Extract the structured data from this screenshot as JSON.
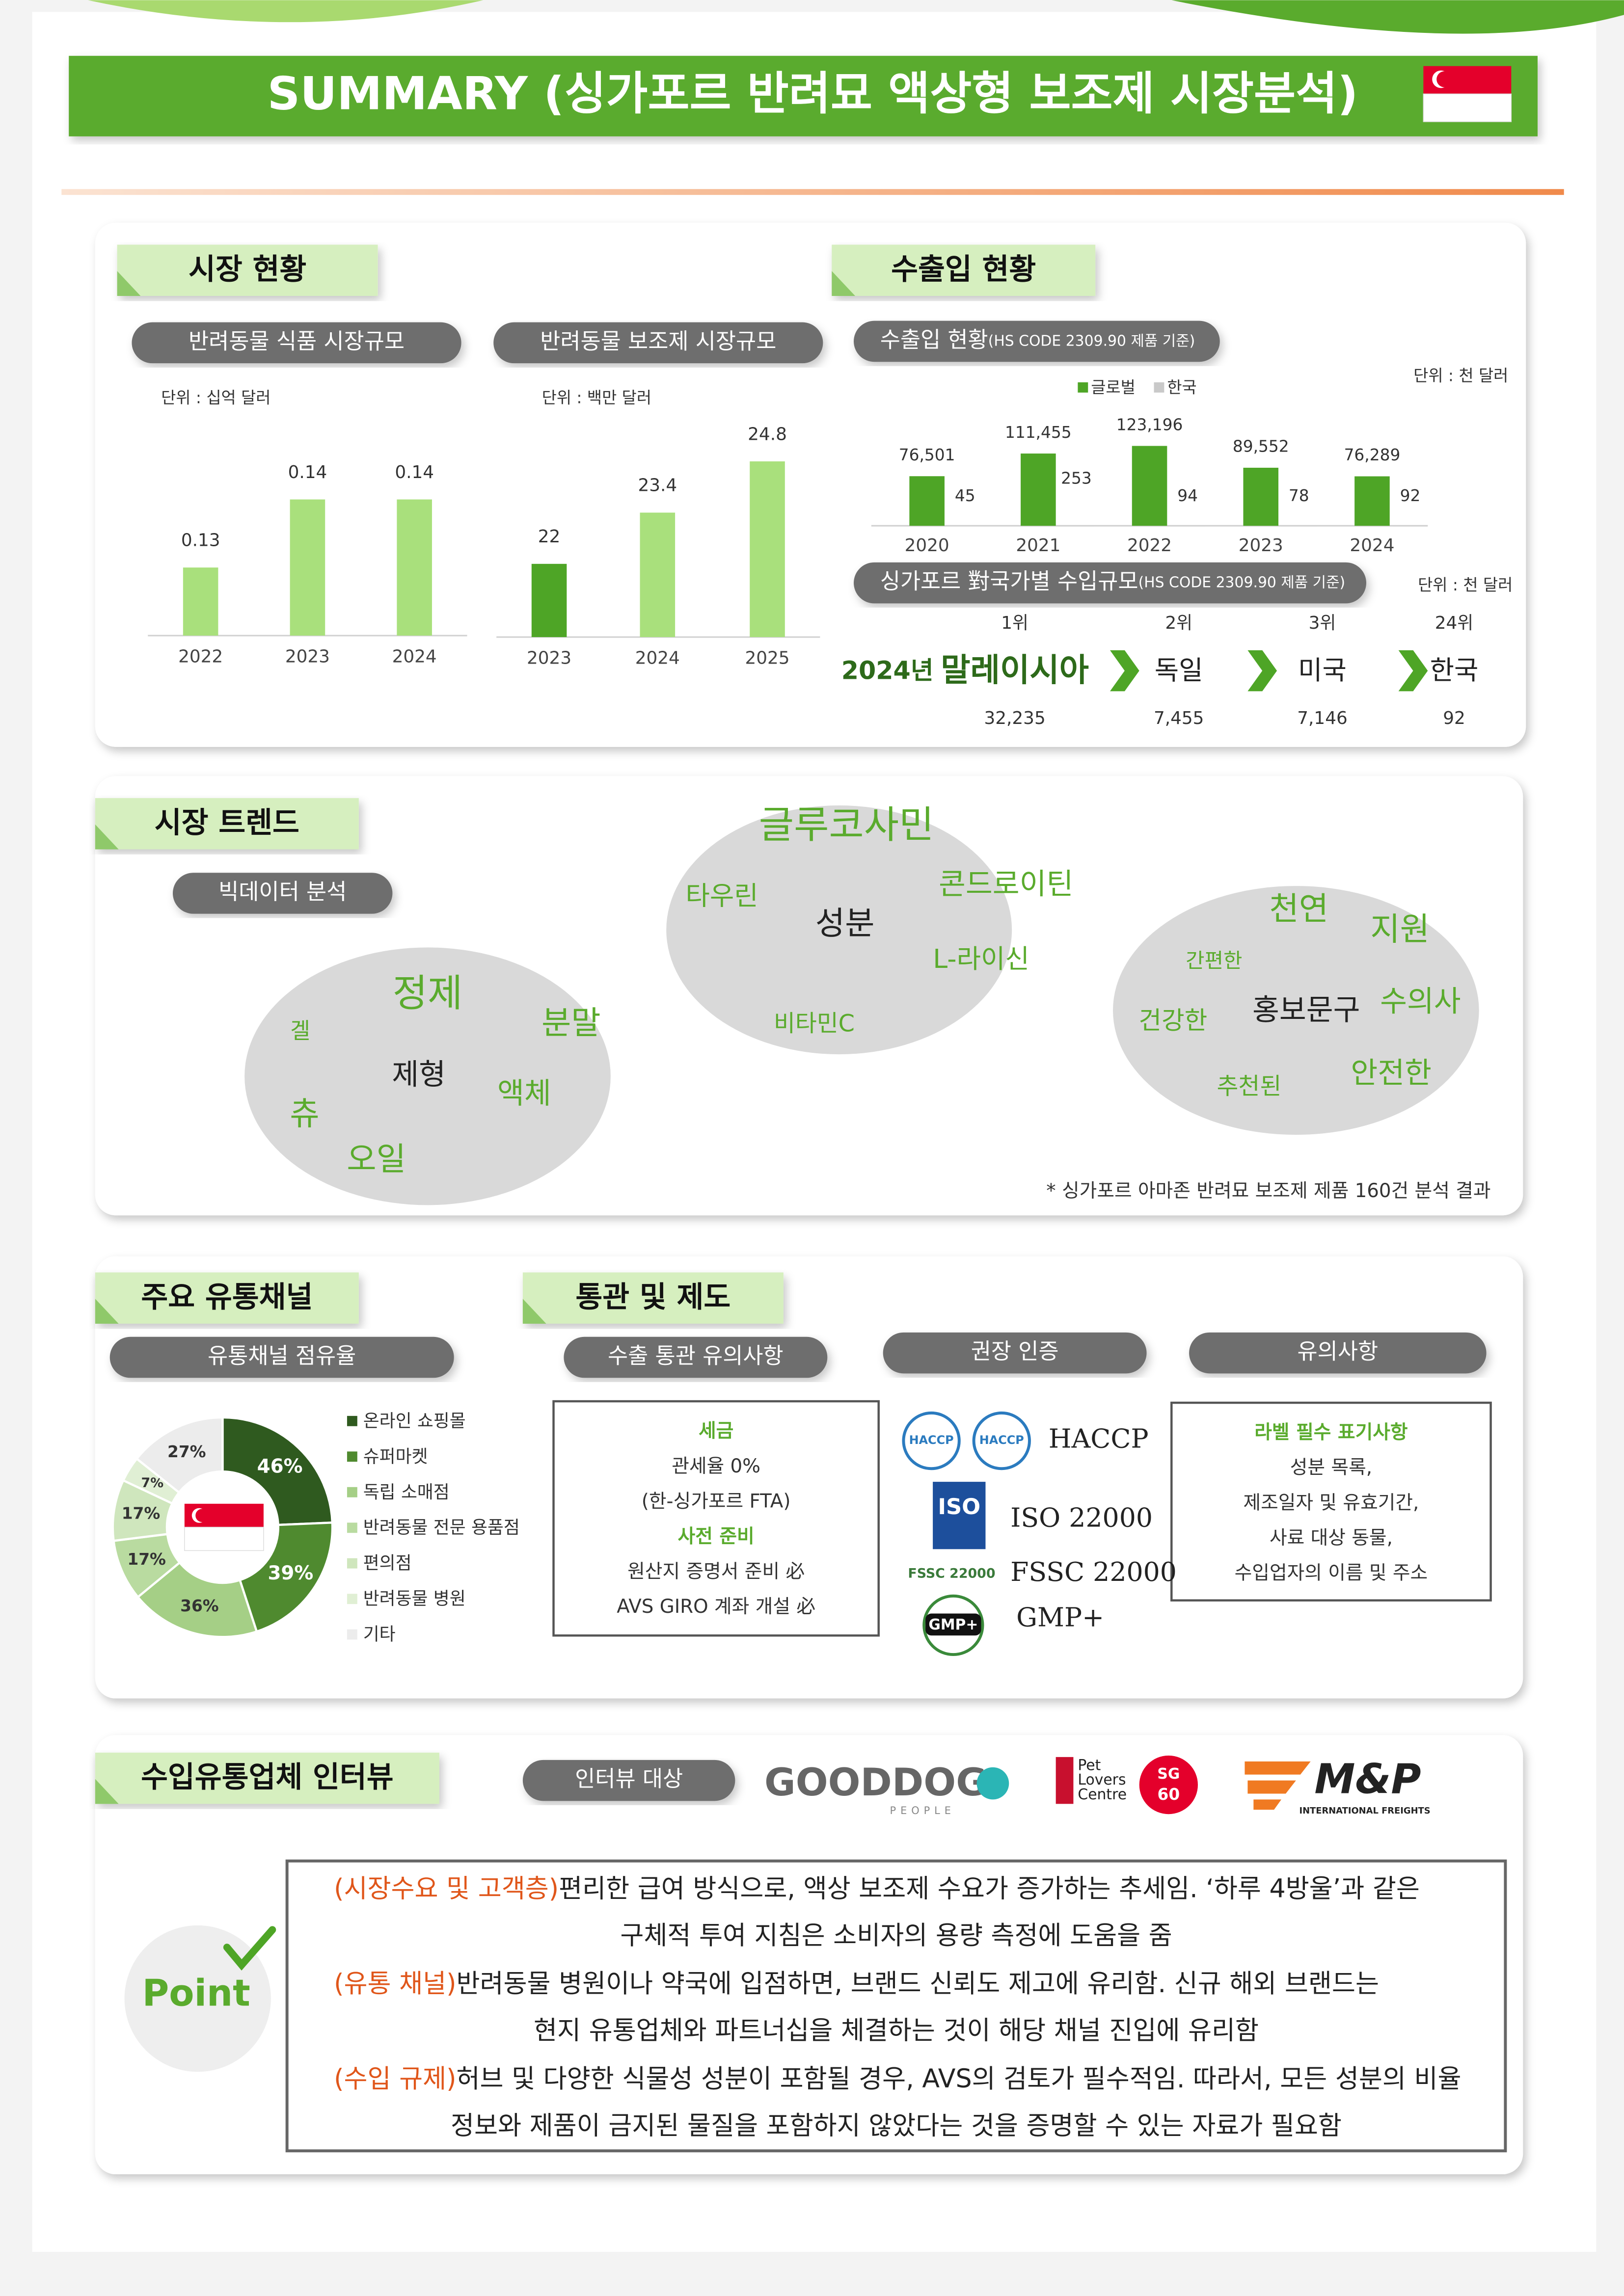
{
  "header": {
    "title": "SUMMARY (싱가포르 반려묘 액상형 보조제 시장분석)"
  },
  "market": {
    "title": "시장 현황",
    "food": {
      "type": "bar",
      "label": "반려동물 식품 시장규모",
      "unit": "단위 : 십억 달러",
      "categories": [
        "2022",
        "2023",
        "2024"
      ],
      "values": [
        0.13,
        0.14,
        0.14
      ],
      "colors": [
        "#a9e07c",
        "#a9e07c",
        "#a9e07c"
      ],
      "ylim": [
        0.12,
        0.16
      ]
    },
    "supplement": {
      "type": "bar",
      "label": "반려동물 보조제 시장규모",
      "unit": "단위 : 백만 달러",
      "categories": [
        "2023",
        "2024",
        "2025"
      ],
      "values": [
        22,
        23.4,
        24.8
      ],
      "colors": [
        "#4ea526",
        "#a9e07c",
        "#a9e07c"
      ],
      "ylim": [
        20,
        26
      ]
    }
  },
  "trade": {
    "title": "수출입 현황",
    "label": "수출입 현황",
    "label_note": "(HS CODE 2309.90 제품 기준)",
    "unit": "단위 : 천 달러",
    "chart": {
      "type": "bar",
      "categories": [
        "2020",
        "2021",
        "2022",
        "2023",
        "2024"
      ],
      "ylim": [
        0,
        140000
      ],
      "series": [
        {
          "name": "글로벌",
          "color": "#4ea526",
          "values": [
            76501,
            111455,
            123196,
            89552,
            76289
          ],
          "value_labels": [
            "76,501",
            "111,455",
            "123,196",
            "89,552",
            "76,289"
          ]
        },
        {
          "name": "한국",
          "color": "#c9c9c9",
          "values": [
            45,
            253,
            94,
            78,
            92
          ]
        }
      ]
    }
  },
  "import_rank": {
    "label": "싱가포르 對국가별 수입규모",
    "label_note": "(HS CODE 2309.90 제품 기준)",
    "unit": "단위 : 천 달러",
    "year": "2024년",
    "items": [
      {
        "rank": "1위",
        "country": "말레이시아",
        "value": "32,235"
      },
      {
        "rank": "2위",
        "country": "독일",
        "value": "7,455"
      },
      {
        "rank": "3위",
        "country": "미국",
        "value": "7,146"
      },
      {
        "rank": "24위",
        "country": "한국",
        "value": "92"
      }
    ]
  },
  "trends": {
    "title": "시장 트렌드",
    "label": "빅데이터 분석",
    "clouds": [
      {
        "words": [
          "정제",
          "겔",
          "분말",
          "제형",
          "츄",
          "액체",
          "오일"
        ]
      },
      {
        "words": [
          "글루코사민",
          "타우린",
          "콘드로이틴",
          "성분",
          "L-라이신",
          "비타민C"
        ]
      },
      {
        "words": [
          "천연",
          "간편한",
          "지원",
          "건강한",
          "홍보문구",
          "수의사",
          "추천된",
          "안전한"
        ]
      }
    ],
    "note": "* 싱가포르 아마존 반려묘 보조제 제품 160건 분석 결과"
  },
  "channels": {
    "title": "주요 유통채널",
    "label": "유통채널 점유율",
    "chart": {
      "type": "pie",
      "categories": [
        "온라인 쇼핑몰",
        "슈퍼마켓",
        "독립 소매점",
        "반려동물 전문 용품점",
        "편의점",
        "반려동물 병원",
        "기타"
      ],
      "values": [
        46,
        39,
        36,
        17,
        17,
        7,
        27
      ],
      "value_labels": [
        "46%",
        "39%",
        "36%",
        "17%",
        "17%",
        "7%",
        "27%"
      ],
      "colors": [
        "#2f5a1f",
        "#4f8a2f",
        "#a5cf86",
        "#b9dba0",
        "#cfe6bd",
        "#e0efd4",
        "#ececec"
      ]
    }
  },
  "customs": {
    "title": "통관 및 제도",
    "export": {
      "label": "수출 통관 유의사항",
      "lines": [
        {
          "text": "세금",
          "kind": "heading"
        },
        {
          "text": "관세율 0%"
        },
        {
          "text": "(한-싱가포르 FTA)"
        },
        {
          "text": "사전 준비",
          "kind": "heading"
        },
        {
          "text": "원산지 증명서 준비 必"
        },
        {
          "text": "AVS GIRO 계좌 개설 必"
        }
      ]
    },
    "certs": {
      "label": "권장 인증",
      "items": [
        {
          "name": "HACCP",
          "logo": "HACCP"
        },
        {
          "name": "ISO 22000",
          "logo": "ISO"
        },
        {
          "name": "FSSC 22000",
          "logo": "FSSC 22000"
        },
        {
          "name": "GMP+",
          "logo": "GMP+"
        }
      ]
    },
    "notes": {
      "label": "유의사항",
      "lines": [
        {
          "text": "라벨 필수 표기사항",
          "kind": "heading"
        },
        {
          "text": "성분 목록,"
        },
        {
          "text": "제조일자 및 유효기간,"
        },
        {
          "text": "사료 대상 동물,"
        },
        {
          "text": "수입업자의 이름 및 주소"
        }
      ]
    }
  },
  "interview": {
    "title": "수입유통업체 인터뷰",
    "label": "인터뷰 대상",
    "logos": [
      {
        "lines": [
          "GOODDOG",
          "PEOPLE"
        ]
      },
      {
        "lines": [
          "Pet",
          "Lovers",
          "Centre",
          "SG",
          "60"
        ]
      },
      {
        "lines": [
          "M&P",
          "INTERNATIONAL FREIGHTS"
        ]
      }
    ],
    "point": {
      "label": "Point",
      "items": [
        {
          "tag": "(시장수요 및 고객층)",
          "lines": [
            "편리한 급여 방식으로, 액상 보조제 수요가 증가하는 추세임. ‘하루 4방울’과 같은",
            "구체적 투여 지침은 소비자의 용량 측정에 도움을 줌"
          ]
        },
        {
          "tag": "(유통 채널)",
          "lines": [
            "반려동물 병원이나 약국에 입점하면, 브랜드 신뢰도 제고에 유리함. 신규 해외 브랜드는",
            "현지 유통업체와 파트너십을 체결하는 것이 해당 채널 진입에 유리함"
          ]
        },
        {
          "tag": "(수입 규제)",
          "lines": [
            "허브 및 다양한 식물성 성분이 포함될 경우, AVS의 검토가 필수적임. 따라서, 모든 성분의 비율",
            "정보와 제품이 금지된 물질을 포함하지 않았다는 것을 증명할 수 있는 자료가 필요함"
          ]
        }
      ]
    }
  }
}
